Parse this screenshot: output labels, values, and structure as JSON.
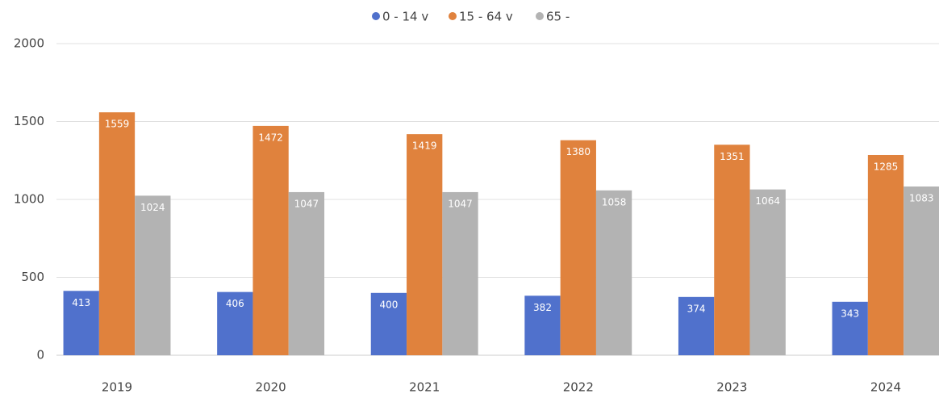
{
  "chart_data": {
    "type": "bar",
    "legend": "top",
    "categories": [
      "2019",
      "2020",
      "2021",
      "2022",
      "2023",
      "2024"
    ],
    "series": [
      {
        "name": "0 - 14 v",
        "color": "#5071cc",
        "values": [
          413,
          406,
          400,
          382,
          374,
          343
        ]
      },
      {
        "name": "15 - 64 v",
        "color": "#e0823d",
        "values": [
          1559,
          1472,
          1419,
          1380,
          1351,
          1285
        ]
      },
      {
        "name": "65 -",
        "color": "#b3b3b3",
        "values": [
          1024,
          1047,
          1047,
          1058,
          1064,
          1083
        ]
      }
    ],
    "ylim": [
      0,
      2000
    ],
    "yticks": [
      0,
      500,
      1000,
      1500,
      2000
    ],
    "grid": true
  }
}
